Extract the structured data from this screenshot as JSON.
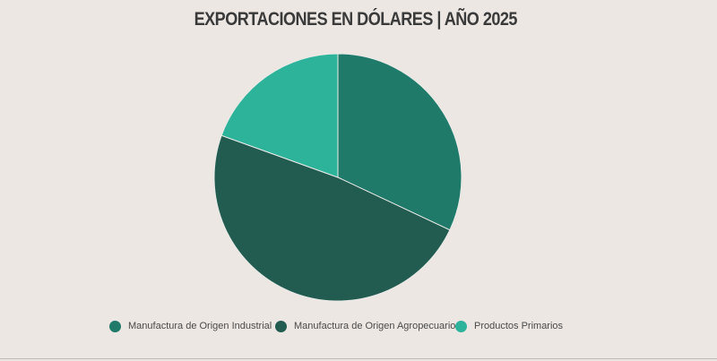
{
  "chart_data": {
    "type": "pie",
    "title": "EXPORTACIONES EN DÓLARES | AÑO 2025",
    "start_angle_deg": 0,
    "direction": "clockwise",
    "slices": [
      {
        "name": "Manufactura de Origen Industrial",
        "value": 32.0,
        "color": "#1f7a6a"
      },
      {
        "name": "Manufactura de Origen Agropecuario",
        "value": 48.5,
        "color": "#225b50"
      },
      {
        "name": "Productos Primarios",
        "value": 19.5,
        "color": "#2db39a"
      }
    ],
    "legend_position": "bottom"
  },
  "colors": {
    "background": "#ece7e3",
    "slice_border": "#e8ebe8"
  }
}
